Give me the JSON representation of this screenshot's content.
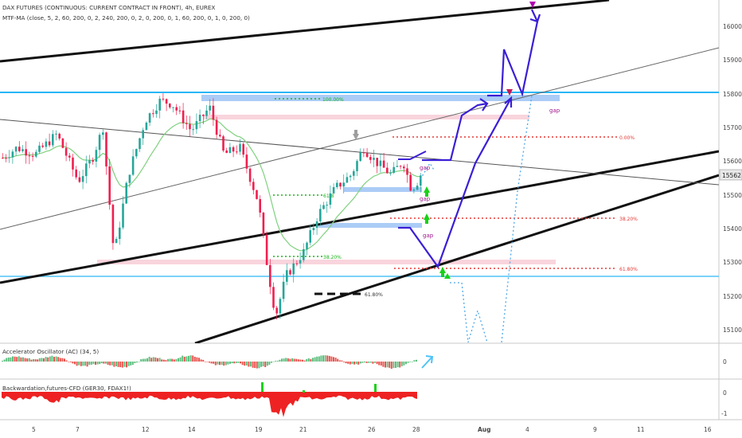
{
  "header": {
    "title": "DAX FUTURES (CONTINUOUS: CURRENT CONTRACT IN FRONT), 4h, EUREX",
    "indicator": "MTF-MA (close, 5, 2, 60, 200, 0, 2, 240, 200, 0, 2, 0, 200, 0, 1, 60, 200, 0, 1, 0, 200, 0)"
  },
  "panes": {
    "oscillator_label": "Accelerator Oscillator (AC) (34, 5)",
    "backwardation_label": "Backwardation,futures-CFD (GER30, FDAX1!)",
    "osc_zero": "0",
    "bw_zero": "0",
    "bw_minus": "-1"
  },
  "price_axis": {
    "ticks": [
      "16000",
      "15900",
      "15800",
      "15700",
      "15600",
      "15500",
      "15400",
      "15300",
      "15200",
      "15100"
    ],
    "current_price": "15562"
  },
  "time_axis": {
    "ticks": [
      "5",
      "7",
      "12",
      "14",
      "19",
      "21",
      "26",
      "28",
      "Aug",
      "4",
      "9",
      "11",
      "16"
    ]
  },
  "annotations": {
    "fib_100": "100.00%",
    "fib_0": "0.00%",
    "fib_382_right": "38.20%",
    "fib_618_right": "61.80%",
    "fib_618_left": "61.8",
    "fib_382_left": "38.20%",
    "fib_618_bottom": "61.80%",
    "gap_top": "gap",
    "gap_mid1": "gap",
    "gap_mid2": "gap",
    "gap_low": "gap"
  },
  "colors": {
    "bull": "#26a69a",
    "bear": "#ef1f4f",
    "ma": "#7fd17f",
    "cyan_line": "#29b6f6",
    "zone_blue": "#9cc3f5",
    "zone_pink": "#f7c9d5",
    "projection": "#3a1fd6",
    "fib_green": "#19b319",
    "fib_red": "#e53935"
  },
  "chart_data": [
    {
      "type": "line",
      "title": "DAX FUTURES (CONTINUOUS: CURRENT CONTRACT IN FRONT), 4h, EUREX",
      "x_ticks": [
        "5",
        "7",
        "12",
        "14",
        "19",
        "21",
        "26",
        "28",
        "Aug",
        "4",
        "9",
        "11",
        "16"
      ],
      "ylim": [
        15060,
        16070
      ],
      "y_ticks": [
        16000,
        15900,
        15800,
        15700,
        15600,
        15500,
        15400,
        15300,
        15200,
        15100
      ],
      "last_price": 15562,
      "horizontal_levels": [
        15806,
        15262
      ],
      "fib_levels": {
        "100.00%": 15784,
        "0.00%": 15672,
        "38.20%": 15432,
        "61.80%": 15285
      },
      "series": [
        {
          "name": "price (approx. candle path)",
          "points": [
            [
              "5",
              15620
            ],
            [
              "7",
              15540
            ],
            [
              "12",
              15760
            ],
            [
              "14",
              15690
            ],
            [
              "19",
              15260
            ],
            [
              "21",
              15330
            ],
            [
              "26",
              15640
            ],
            [
              "28",
              15530
            ]
          ]
        },
        {
          "name": "projection",
          "points": [
            [
              "28",
              15600
            ],
            [
              "Aug",
              15780
            ],
            [
              "4",
              16040
            ]
          ]
        }
      ]
    },
    {
      "type": "bar",
      "title": "Accelerator Oscillator (AC) (34, 5)",
      "y_ticks": [
        0
      ]
    },
    {
      "type": "area",
      "title": "Backwardation,futures-CFD (GER30, FDAX1!)",
      "y_ticks": [
        0,
        -1
      ]
    }
  ]
}
